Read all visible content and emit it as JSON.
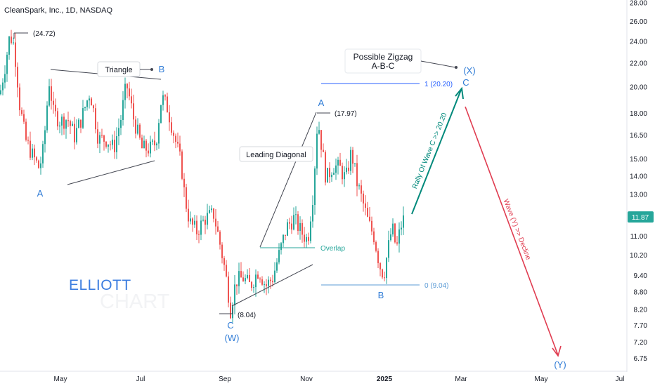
{
  "header": {
    "title": "CleanSpark, Inc., 1D, NASDAQ"
  },
  "watermark": {
    "line1": "ELLIOTT",
    "line2": "CHART"
  },
  "chart_data": {
    "type": "candlestick",
    "title": "CleanSpark, Inc., 1D, NASDAQ",
    "y_axis": {
      "position": "right",
      "scale": "log",
      "range": [
        6.4,
        28.5
      ],
      "tick_labels": [
        "28.00",
        "26.00",
        "24.00",
        "22.00",
        "20.00",
        "18.00",
        "16.50",
        "15.00",
        "14.00",
        "13.00",
        "11.87",
        "11.00",
        "10.20",
        "9.40",
        "8.80",
        "8.20",
        "7.70",
        "7.20",
        "6.75"
      ]
    },
    "x_axis": {
      "tick_labels": [
        "May",
        "Jul",
        "Sep",
        "Nov",
        "2025",
        "Mar",
        "May",
        "Jul"
      ]
    },
    "last_price": {
      "value": 11.87,
      "label": "11.87",
      "color": "#26a69a"
    },
    "up_color": "#26a69a",
    "down_color": "#ef5350",
    "waypoints": [
      {
        "x": 0,
        "y": 19.4
      },
      {
        "x": 8,
        "y": 22.0
      },
      {
        "x": 14,
        "y": 24.6
      },
      {
        "x": 20,
        "y": 23.6
      },
      {
        "x": 28,
        "y": 18.6
      },
      {
        "x": 36,
        "y": 16.2
      },
      {
        "x": 46,
        "y": 15.2
      },
      {
        "x": 56,
        "y": 14.4
      },
      {
        "x": 62,
        "y": 15.6
      },
      {
        "x": 70,
        "y": 20.4
      },
      {
        "x": 76,
        "y": 18.0
      },
      {
        "x": 86,
        "y": 17.4
      },
      {
        "x": 96,
        "y": 17.6
      },
      {
        "x": 106,
        "y": 16.4
      },
      {
        "x": 116,
        "y": 17.6
      },
      {
        "x": 128,
        "y": 19.6
      },
      {
        "x": 140,
        "y": 16.2
      },
      {
        "x": 152,
        "y": 16.2
      },
      {
        "x": 162,
        "y": 15.6
      },
      {
        "x": 172,
        "y": 17.6
      },
      {
        "x": 180,
        "y": 20.2
      },
      {
        "x": 190,
        "y": 17.6
      },
      {
        "x": 202,
        "y": 15.6
      },
      {
        "x": 214,
        "y": 15.6
      },
      {
        "x": 222,
        "y": 16.0
      },
      {
        "x": 230,
        "y": 19.2
      },
      {
        "x": 238,
        "y": 18.4
      },
      {
        "x": 248,
        "y": 16.4
      },
      {
        "x": 258,
        "y": 14.6
      },
      {
        "x": 263,
        "y": 12.8
      },
      {
        "x": 270,
        "y": 11.6
      },
      {
        "x": 280,
        "y": 11.2
      },
      {
        "x": 292,
        "y": 11.8
      },
      {
        "x": 304,
        "y": 12.0
      },
      {
        "x": 312,
        "y": 10.8
      },
      {
        "x": 320,
        "y": 9.6
      },
      {
        "x": 328,
        "y": 8.2
      },
      {
        "x": 336,
        "y": 9.2
      },
      {
        "x": 346,
        "y": 9.3
      },
      {
        "x": 356,
        "y": 9.0
      },
      {
        "x": 368,
        "y": 9.6
      },
      {
        "x": 378,
        "y": 9.0
      },
      {
        "x": 388,
        "y": 9.3
      },
      {
        "x": 398,
        "y": 10.3
      },
      {
        "x": 408,
        "y": 11.4
      },
      {
        "x": 418,
        "y": 11.8
      },
      {
        "x": 428,
        "y": 11.2
      },
      {
        "x": 438,
        "y": 10.8
      },
      {
        "x": 446,
        "y": 13.2
      },
      {
        "x": 452,
        "y": 17.6
      },
      {
        "x": 458,
        "y": 15.6
      },
      {
        "x": 464,
        "y": 13.8
      },
      {
        "x": 474,
        "y": 14.6
      },
      {
        "x": 484,
        "y": 14.4
      },
      {
        "x": 492,
        "y": 13.8
      },
      {
        "x": 500,
        "y": 15.4
      },
      {
        "x": 508,
        "y": 13.6
      },
      {
        "x": 516,
        "y": 12.6
      },
      {
        "x": 524,
        "y": 11.6
      },
      {
        "x": 532,
        "y": 11.0
      },
      {
        "x": 540,
        "y": 9.8
      },
      {
        "x": 546,
        "y": 9.4
      },
      {
        "x": 552,
        "y": 10.4
      },
      {
        "x": 558,
        "y": 11.4
      },
      {
        "x": 564,
        "y": 10.4
      },
      {
        "x": 570,
        "y": 11.4
      },
      {
        "x": 576,
        "y": 11.9
      }
    ],
    "series": [
      {
        "name": "1 (20.20)",
        "value": 20.2,
        "color": "#2962ff"
      },
      {
        "name": "0 (9.04)",
        "value": 9.04,
        "color": "#5b9bd5"
      }
    ],
    "annotations": {
      "high_label": "(24.72)",
      "triangle_label": "Triangle",
      "triangle_b": "B",
      "first_a": "A",
      "leading_diagonal": "Leading Diagonal",
      "diag_a": "A",
      "diag_high": "(17.97)",
      "overlap": "Overlap",
      "low_label": "(8.04)",
      "wave_c": "C",
      "wave_w": "(W)",
      "fib_top": "1 (20.20)",
      "fib_bottom": "0 (9.04)",
      "wave_b": "B",
      "zigzag_line1": "Possible Zigzag",
      "zigzag_line2": "A-B-C",
      "wave_x": "(X)",
      "wave_c_top": "C",
      "rally_text": "Rally Of Wave C >> 20.20",
      "decline_text": "Wave (Y) >> Decline",
      "wave_y": "(Y)"
    },
    "colors": {
      "wave_label": "#2e7bd6",
      "rally_arrow": "#00897b",
      "decline_arrow": "#e03c50",
      "overlap": "#26a69a",
      "fib_top": "#2962ff",
      "fib_bottom": "#5b9bd5",
      "axis_text": "#131722"
    }
  }
}
